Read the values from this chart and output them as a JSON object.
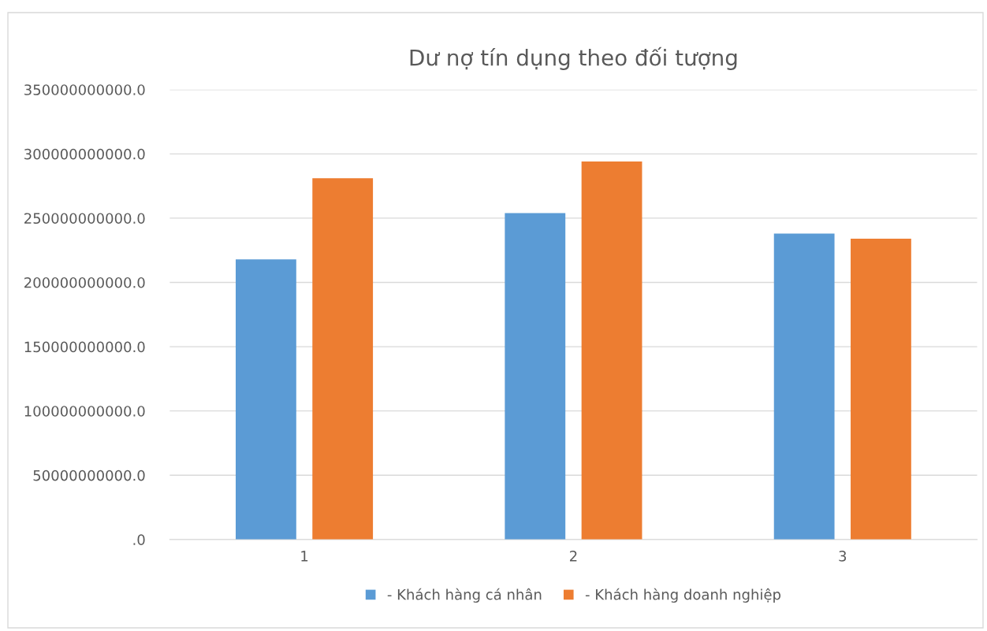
{
  "chart_data": {
    "type": "bar",
    "title": "Dư nợ tín dụng theo đối tượng",
    "categories": [
      "1",
      "2",
      "3"
    ],
    "series": [
      {
        "name": "- Khách hàng cá nhân",
        "color": "#5b9bd5",
        "values": [
          218000000000,
          254000000000,
          238000000000
        ]
      },
      {
        "name": "- Khách hàng doanh nghiệp",
        "color": "#ed7d31",
        "values": [
          281000000000,
          294000000000,
          234000000000
        ]
      }
    ],
    "ylim": [
      0,
      350000000000
    ],
    "yticks": [
      {
        "value": 0,
        "label": ".0"
      },
      {
        "value": 50000000000,
        "label": "50000000000.0"
      },
      {
        "value": 100000000000,
        "label": "100000000000.0"
      },
      {
        "value": 150000000000,
        "label": "150000000000.0"
      },
      {
        "value": 200000000000,
        "label": "200000000000.0"
      },
      {
        "value": 250000000000,
        "label": "250000000000.0"
      },
      {
        "value": 300000000000,
        "label": "300000000000.0"
      },
      {
        "value": 350000000000,
        "label": "350000000000.0"
      }
    ],
    "grid": "y",
    "legend": "bottom"
  }
}
